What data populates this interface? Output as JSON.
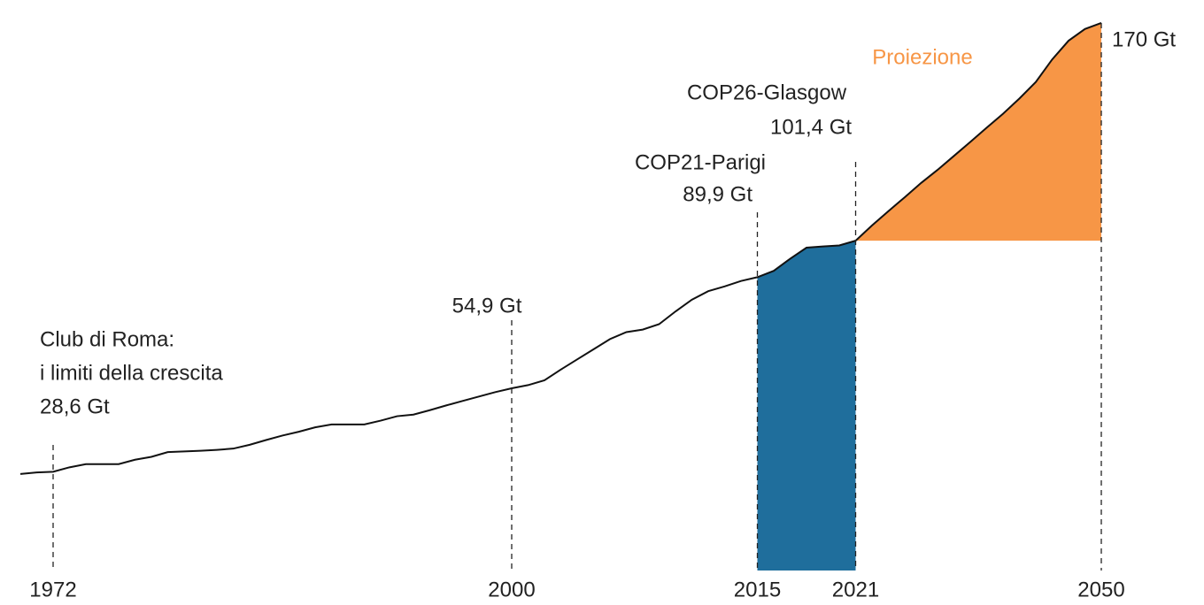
{
  "chart_data": {
    "type": "line",
    "categories": [
      null,
      null,
      "1972",
      null,
      null,
      null,
      null,
      null,
      null,
      null,
      null,
      null,
      null,
      null,
      null,
      null,
      null,
      null,
      null,
      null,
      null,
      null,
      null,
      null,
      null,
      null,
      null,
      null,
      null,
      null,
      "2000",
      null,
      null,
      null,
      null,
      null,
      null,
      null,
      null,
      null,
      null,
      null,
      null,
      null,
      null,
      "2015",
      null,
      null,
      null,
      null,
      null,
      "2021",
      null,
      null,
      null,
      null,
      null,
      null,
      null,
      null,
      null,
      null,
      null,
      null,
      null,
      null,
      "2050"
    ],
    "series": [
      {
        "color": "#111111",
        "values": [
          27.9,
          28.4,
          28.6,
          30.0,
          31.0,
          31.0,
          31.0,
          32.4,
          33.3,
          34.8,
          35.0,
          35.2,
          35.5,
          35.9,
          37.1,
          38.6,
          40.0,
          41.2,
          42.6,
          43.5,
          43.5,
          43.5,
          44.7,
          46.1,
          46.6,
          48.0,
          49.5,
          50.9,
          52.3,
          53.7,
          54.9,
          55.9,
          57.4,
          60.8,
          64.0,
          67.2,
          70.4,
          72.6,
          73.4,
          75.1,
          79.1,
          82.8,
          85.5,
          87.0,
          88.7,
          89.9,
          91.9,
          95.7,
          99.2,
          99.6,
          99.9,
          101.4,
          null,
          null,
          null,
          null,
          null,
          null,
          null,
          null,
          null,
          null,
          null,
          null,
          null,
          null,
          null
        ]
      },
      {
        "name": "Proiezione",
        "color": "#f79646",
        "values": [
          null,
          null,
          null,
          null,
          null,
          null,
          null,
          null,
          null,
          null,
          null,
          null,
          null,
          null,
          null,
          null,
          null,
          null,
          null,
          null,
          null,
          null,
          null,
          null,
          null,
          null,
          null,
          null,
          null,
          null,
          null,
          null,
          null,
          null,
          null,
          null,
          null,
          null,
          null,
          null,
          null,
          null,
          null,
          null,
          null,
          null,
          null,
          null,
          null,
          null,
          null,
          101.4,
          106.2,
          110.7,
          115.1,
          119.6,
          123.7,
          128.1,
          132.5,
          137.0,
          141.4,
          146.2,
          151.4,
          158.5,
          164.4,
          168.1,
          170
        ]
      }
    ],
    "highlight": {
      "from": "2015",
      "to": "2021",
      "color": "#1f6e9c"
    },
    "ylim": [
      0,
      175
    ],
    "annotations": [
      [
        "Club di Roma:",
        "i limiti della crescita",
        "28,6 Gt"
      ],
      [
        "54,9 Gt"
      ],
      [
        "COP21-Parigi",
        "89,9 Gt"
      ],
      [
        "COP26-Glasgow",
        "101,4 Gt"
      ],
      [
        "170 Gt"
      ]
    ]
  }
}
